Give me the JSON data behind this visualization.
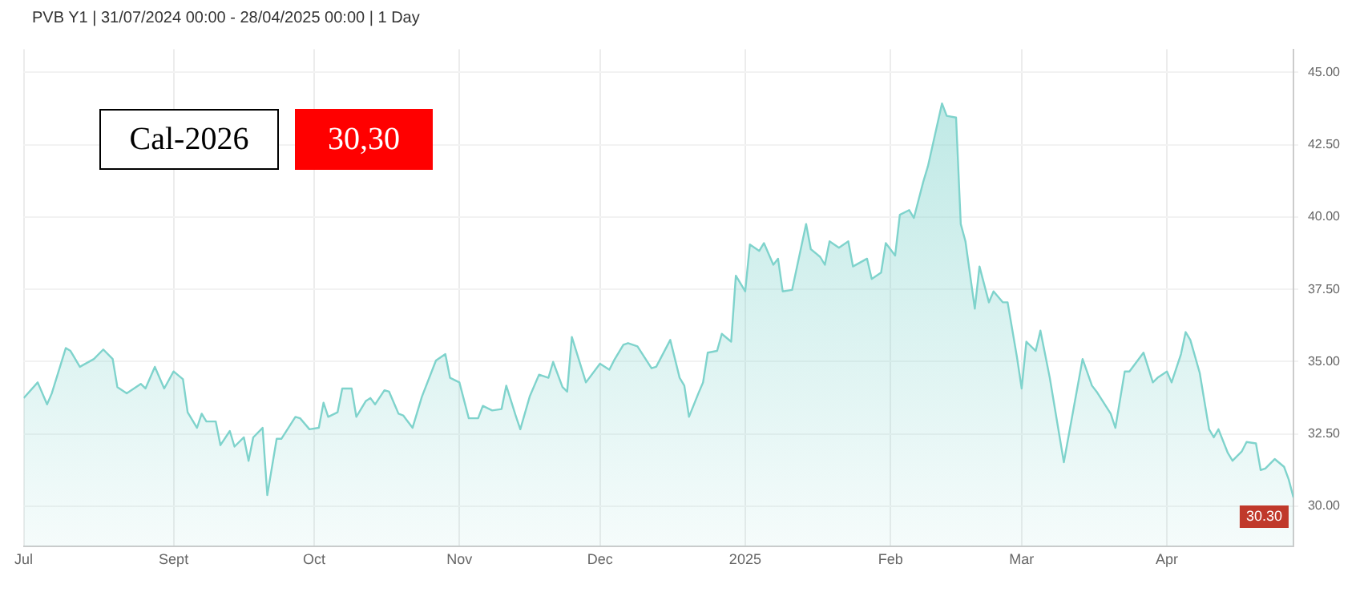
{
  "chart_data": {
    "type": "area",
    "title": "PVB Y1 | 31/07/2024 00:00 - 28/04/2025 00:00 | 1 Day",
    "x": [
      "2024-07-31",
      "2024-08-03",
      "2024-08-05",
      "2024-08-06",
      "2024-08-09",
      "2024-08-10",
      "2024-08-12",
      "2024-08-15",
      "2024-08-17",
      "2024-08-19",
      "2024-08-20",
      "2024-08-22",
      "2024-08-25",
      "2024-08-26",
      "2024-08-28",
      "2024-08-30",
      "2024-09-01",
      "2024-09-03",
      "2024-09-04",
      "2024-09-06",
      "2024-09-07",
      "2024-09-08",
      "2024-09-10",
      "2024-09-11",
      "2024-09-13",
      "2024-09-14",
      "2024-09-16",
      "2024-09-17",
      "2024-09-18",
      "2024-09-20",
      "2024-09-21",
      "2024-09-23",
      "2024-09-24",
      "2024-09-27",
      "2024-09-28",
      "2024-09-30",
      "2024-10-02",
      "2024-10-03",
      "2024-10-04",
      "2024-10-06",
      "2024-10-07",
      "2024-10-09",
      "2024-10-10",
      "2024-10-12",
      "2024-10-13",
      "2024-10-14",
      "2024-10-16",
      "2024-10-17",
      "2024-10-19",
      "2024-10-20",
      "2024-10-22",
      "2024-10-24",
      "2024-10-27",
      "2024-10-29",
      "2024-10-30",
      "2024-11-01",
      "2024-11-03",
      "2024-11-05",
      "2024-11-06",
      "2024-11-08",
      "2024-11-10",
      "2024-11-11",
      "2024-11-13",
      "2024-11-14",
      "2024-11-16",
      "2024-11-18",
      "2024-11-20",
      "2024-11-21",
      "2024-11-23",
      "2024-11-24",
      "2024-11-25",
      "2024-11-28",
      "2024-12-01",
      "2024-12-03",
      "2024-12-04",
      "2024-12-06",
      "2024-12-07",
      "2024-12-09",
      "2024-12-12",
      "2024-12-13",
      "2024-12-16",
      "2024-12-18",
      "2024-12-19",
      "2024-12-20",
      "2024-12-22",
      "2024-12-23",
      "2024-12-24",
      "2024-12-26",
      "2024-12-27",
      "2024-12-29",
      "2024-12-30",
      "2025-01-01",
      "2025-01-02",
      "2025-01-04",
      "2025-01-05",
      "2025-01-07",
      "2025-01-08",
      "2025-01-09",
      "2025-01-11",
      "2025-01-12",
      "2025-01-14",
      "2025-01-15",
      "2025-01-17",
      "2025-01-18",
      "2025-01-19",
      "2025-01-21",
      "2025-01-23",
      "2025-01-24",
      "2025-01-27",
      "2025-01-28",
      "2025-01-30",
      "2025-01-31",
      "2025-02-02",
      "2025-02-03",
      "2025-02-05",
      "2025-02-06",
      "2025-02-08",
      "2025-02-09",
      "2025-02-12",
      "2025-02-13",
      "2025-02-15",
      "2025-02-16",
      "2025-02-17",
      "2025-02-19",
      "2025-02-20",
      "2025-02-22",
      "2025-02-23",
      "2025-02-25",
      "2025-02-26",
      "2025-02-28",
      "2025-03-01",
      "2025-03-02",
      "2025-03-04",
      "2025-03-05",
      "2025-03-07",
      "2025-03-10",
      "2025-03-14",
      "2025-03-16",
      "2025-03-17",
      "2025-03-20",
      "2025-03-21",
      "2025-03-23",
      "2025-03-24",
      "2025-03-27",
      "2025-03-29",
      "2025-03-30",
      "2025-04-01",
      "2025-04-02",
      "2025-04-04",
      "2025-04-05",
      "2025-04-06",
      "2025-04-08",
      "2025-04-10",
      "2025-04-11",
      "2025-04-12",
      "2025-04-14",
      "2025-04-15",
      "2025-04-17",
      "2025-04-18",
      "2025-04-20",
      "2025-04-21",
      "2025-04-22",
      "2025-04-24",
      "2025-04-26",
      "2025-04-27",
      "2025-04-28"
    ],
    "series": [
      {
        "color": "#7fd3cc",
        "values": [
          33.74,
          34.28,
          33.52,
          33.9,
          35.47,
          35.37,
          34.82,
          35.09,
          35.42,
          35.09,
          34.12,
          33.9,
          34.23,
          34.07,
          34.82,
          34.07,
          34.66,
          34.39,
          33.25,
          32.71,
          33.2,
          32.93,
          32.93,
          32.11,
          32.6,
          32.06,
          32.38,
          31.57,
          32.38,
          32.71,
          30.38,
          32.33,
          32.33,
          33.09,
          33.04,
          32.66,
          32.71,
          33.58,
          33.09,
          33.25,
          34.07,
          34.07,
          33.09,
          33.63,
          33.74,
          33.52,
          34.01,
          33.96,
          33.2,
          33.14,
          32.71,
          33.79,
          35.04,
          35.26,
          34.44,
          34.28,
          33.04,
          33.04,
          33.47,
          33.31,
          33.36,
          34.17,
          33.14,
          32.66,
          33.79,
          34.55,
          34.44,
          34.99,
          34.12,
          33.96,
          35.85,
          34.28,
          34.93,
          34.72,
          35.04,
          35.58,
          35.64,
          35.53,
          34.77,
          34.82,
          35.75,
          34.44,
          34.17,
          33.09,
          33.9,
          34.28,
          35.31,
          35.37,
          35.96,
          35.69,
          37.97,
          37.43,
          39.05,
          38.83,
          39.1,
          38.35,
          38.56,
          37.43,
          37.48,
          38.24,
          39.76,
          38.89,
          38.62,
          38.35,
          39.16,
          38.94,
          39.16,
          38.29,
          38.56,
          37.86,
          38.08,
          39.1,
          38.67,
          40.08,
          40.24,
          39.97,
          41.22,
          41.76,
          43.93,
          43.5,
          43.44,
          39.76,
          39.16,
          36.83,
          38.29,
          37.05,
          37.43,
          37.05,
          37.05,
          35.15,
          34.07,
          35.69,
          35.37,
          36.07,
          34.44,
          31.52,
          35.09,
          34.17,
          33.96,
          33.2,
          32.71,
          34.66,
          34.66,
          35.31,
          34.28,
          34.44,
          34.66,
          34.28,
          35.26,
          36.02,
          35.75,
          34.61,
          32.66,
          32.38,
          32.66,
          31.84,
          31.57,
          31.9,
          32.22,
          32.17,
          31.25,
          31.3,
          31.63,
          31.36,
          30.92,
          30.3
        ]
      }
    ],
    "xlim": [
      "2024-07-31",
      "2025-04-28"
    ],
    "xticks": [
      {
        "value": "2024-07-31",
        "label": "Jul"
      },
      {
        "value": "2024-09-01",
        "label": "Sept"
      },
      {
        "value": "2024-10-01",
        "label": "Oct"
      },
      {
        "value": "2024-11-01",
        "label": "Nov"
      },
      {
        "value": "2024-12-01",
        "label": "Dec"
      },
      {
        "value": "2025-01-01",
        "label": "2025"
      },
      {
        "value": "2025-02-01",
        "label": "Feb"
      },
      {
        "value": "2025-03-01",
        "label": "Mar"
      },
      {
        "value": "2025-04-01",
        "label": "Apr"
      }
    ],
    "ylim": [
      28.6,
      45.8
    ],
    "yticks": [
      {
        "value": 30,
        "label": "30.00"
      },
      {
        "value": 32.5,
        "label": "32.50"
      },
      {
        "value": 35,
        "label": "35.00"
      },
      {
        "value": 37.5,
        "label": "37.50"
      },
      {
        "value": 40,
        "label": "40.00"
      },
      {
        "value": 42.5,
        "label": "42.50"
      },
      {
        "value": 45,
        "label": "45.00"
      }
    ],
    "grid": true,
    "annotations": [
      "Cal-2026",
      "30,30",
      {
        "text": "30.30",
        "x": "2025-04-28",
        "y": 30.3
      }
    ]
  }
}
